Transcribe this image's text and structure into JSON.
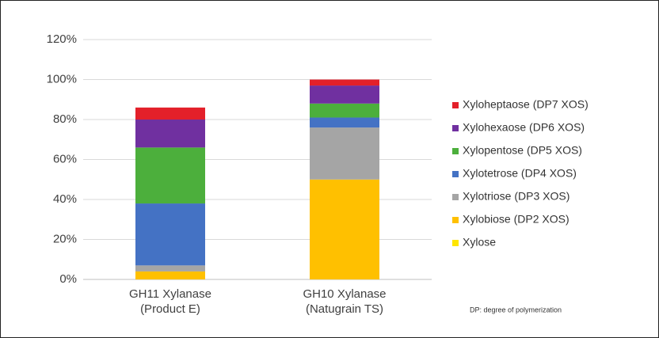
{
  "chart_data": {
    "type": "stacked-bar",
    "categories": [
      [
        "GH11 Xylanase",
        "(Product E)"
      ],
      [
        "GH10 Xylanase",
        "(Natugrain TS)"
      ]
    ],
    "series": [
      {
        "name": "Xylose",
        "color": "#ffe600",
        "values": [
          0,
          0
        ]
      },
      {
        "name": "Xylobiose (DP2 XOS)",
        "color": "#ffc000",
        "values": [
          4,
          50
        ]
      },
      {
        "name": "Xylotriose (DP3 XOS)",
        "color": "#a5a5a5",
        "values": [
          3,
          26
        ]
      },
      {
        "name": "Xylotetrose (DP4 XOS)",
        "color": "#4472c4",
        "values": [
          31,
          5
        ]
      },
      {
        "name": "Xylopentose (DP5 XOS)",
        "color": "#4caf3c",
        "values": [
          28,
          7
        ]
      },
      {
        "name": "Xylohexaose (DP6 XOS)",
        "color": "#7030a0",
        "values": [
          14,
          9
        ]
      },
      {
        "name": "Xyloheptaose (DP7 XOS)",
        "color": "#e3202a",
        "values": [
          6,
          3
        ]
      }
    ],
    "ylim": [
      0,
      120
    ],
    "yticks": [
      {
        "value": 0,
        "label": "0%"
      },
      {
        "value": 20,
        "label": "20%"
      },
      {
        "value": 40,
        "label": "40%"
      },
      {
        "value": 60,
        "label": "60%"
      },
      {
        "value": 80,
        "label": "80%"
      },
      {
        "value": 100,
        "label": "100%"
      },
      {
        "value": 120,
        "label": "120%"
      }
    ],
    "grid": true,
    "legend": "right",
    "annotation": "DP: degree of polymerization"
  }
}
